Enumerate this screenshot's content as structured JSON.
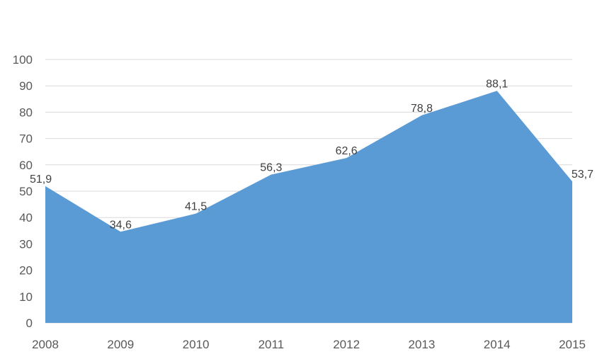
{
  "chart_data": {
    "type": "area",
    "title": "",
    "xlabel": "",
    "ylabel": "",
    "categories": [
      "2008",
      "2009",
      "2010",
      "2011",
      "2012",
      "2013",
      "2014",
      "2015"
    ],
    "values": [
      51.9,
      34.6,
      41.5,
      56.3,
      62.6,
      78.8,
      88.1,
      53.7
    ],
    "data_labels": [
      "51,9",
      "34,6",
      "41,5",
      "56,3",
      "62,6",
      "78,8",
      "88,1",
      "53,7"
    ],
    "ylim": [
      0,
      100
    ],
    "y_ticks": [
      "0",
      "10",
      "20",
      "30",
      "40",
      "50",
      "60",
      "70",
      "80",
      "90",
      "100"
    ],
    "grid": true,
    "legend": "none",
    "fill_color": "#5b9bd5"
  }
}
